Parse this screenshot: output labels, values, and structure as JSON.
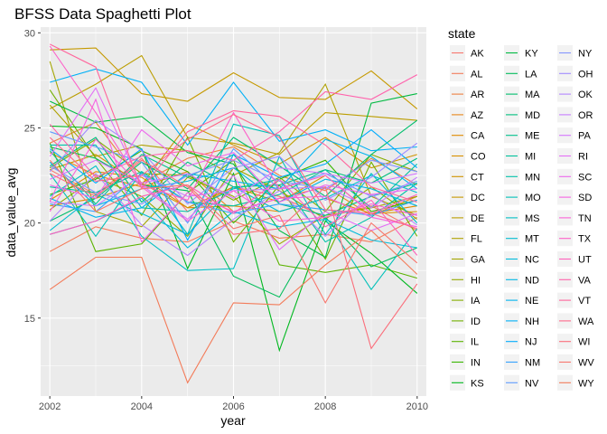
{
  "chart_data": {
    "type": "line",
    "title": "BFSS Data Spaghetti Plot",
    "xlabel": "year",
    "ylabel": "data_value_avg",
    "xlim": [
      2001.8,
      2010.2
    ],
    "ylim": [
      10.9,
      30.3
    ],
    "x_ticks": [
      "2002",
      "2004",
      "2006",
      "2008",
      "2010"
    ],
    "y_ticks": [
      "15",
      "20",
      "25",
      "30"
    ],
    "grid": true,
    "legend_title": "state",
    "legend_position": "right",
    "x": [
      2002,
      2003,
      2004,
      2005,
      2006,
      2007,
      2008,
      2009,
      2010
    ],
    "series": [
      {
        "name": "AK",
        "values": [
          22.8,
          21.5,
          23.4,
          20.6,
          21.9,
          21.4,
          20.3,
          20.9,
          19.6
        ]
      },
      {
        "name": "AL",
        "values": [
          18.5,
          19.8,
          19.2,
          19.0,
          20.1,
          19.2,
          19.4,
          19.0,
          20.3
        ]
      },
      {
        "name": "AR",
        "values": [
          24.2,
          25.3,
          22.1,
          23.4,
          24.0,
          22.5,
          21.7,
          23.4,
          22.0
        ]
      },
      {
        "name": "AZ",
        "values": [
          23.7,
          22.5,
          21.9,
          22.7,
          20.6,
          21.3,
          21.9,
          20.4,
          21.4
        ]
      },
      {
        "name": "CA",
        "values": [
          21.2,
          22.7,
          22.4,
          20.8,
          20.9,
          20.6,
          21.3,
          20.5,
          20.9
        ]
      },
      {
        "name": "CO",
        "values": [
          20.9,
          21.3,
          22.1,
          20.8,
          21.9,
          21.1,
          22.5,
          20.5,
          20.6
        ]
      },
      {
        "name": "CT",
        "values": [
          22.8,
          23.6,
          22.0,
          25.2,
          24.1,
          23.1,
          24.5,
          22.9,
          23.6
        ]
      },
      {
        "name": "DC",
        "values": [
          29.1,
          29.2,
          26.8,
          26.4,
          27.9,
          26.6,
          26.5,
          28.0,
          26.0
        ]
      },
      {
        "name": "DE",
        "values": [
          26.0,
          27.3,
          28.8,
          24.5,
          24.2,
          23.6,
          25.8,
          25.6,
          25.4
        ]
      },
      {
        "name": "FL",
        "values": [
          26.2,
          23.5,
          24.1,
          23.8,
          22.5,
          23.7,
          27.3,
          21.4,
          20.4
        ]
      },
      {
        "name": "GA",
        "values": [
          28.5,
          20.6,
          19.8,
          22.4,
          21.4,
          18.9,
          20.4,
          20.8,
          21.4
        ]
      },
      {
        "name": "HI",
        "values": [
          20.7,
          22.4,
          21.4,
          19.3,
          22.9,
          21.7,
          20.2,
          21.9,
          20.2
        ]
      },
      {
        "name": "IA",
        "values": [
          22.9,
          24.4,
          22.6,
          22.5,
          21.2,
          22.4,
          20.6,
          23.6,
          22.7
        ]
      },
      {
        "name": "ID",
        "values": [
          27.0,
          23.4,
          20.4,
          24.5,
          19.0,
          22.0,
          18.1,
          23.2,
          19.3
        ]
      },
      {
        "name": "IL",
        "values": [
          24.2,
          18.5,
          18.9,
          21.6,
          23.3,
          17.8,
          17.4,
          17.8,
          17.1
        ]
      },
      {
        "name": "IN",
        "values": [
          21.5,
          22.3,
          23.8,
          22.7,
          20.0,
          22.3,
          23.3,
          20.6,
          21.2
        ]
      },
      {
        "name": "KS",
        "values": [
          25.1,
          25.0,
          23.9,
          17.6,
          22.6,
          13.3,
          20.1,
          18.4,
          16.3
        ]
      },
      {
        "name": "KY",
        "values": [
          26.4,
          25.3,
          25.6,
          23.7,
          23.1,
          19.6,
          18.2,
          26.3,
          26.8
        ]
      },
      {
        "name": "LA",
        "values": [
          24.0,
          23.4,
          22.0,
          21.7,
          17.2,
          16.1,
          20.3,
          17.7,
          18.7
        ]
      },
      {
        "name": "MA",
        "values": [
          20.1,
          21.3,
          23.2,
          21.8,
          24.5,
          23.0,
          21.4,
          23.6,
          25.4
        ]
      },
      {
        "name": "MD",
        "values": [
          23.0,
          24.5,
          21.1,
          23.2,
          21.9,
          22.0,
          22.8,
          22.1,
          23.4
        ]
      },
      {
        "name": "ME",
        "values": [
          23.8,
          21.0,
          23.6,
          22.4,
          23.6,
          21.0,
          20.4,
          21.4,
          22.1
        ]
      },
      {
        "name": "MI",
        "values": [
          21.9,
          21.6,
          22.7,
          21.1,
          20.9,
          21.5,
          22.8,
          20.8,
          23.1
        ]
      },
      {
        "name": "MN",
        "values": [
          24.1,
          24.1,
          20.8,
          20.6,
          21.8,
          22.3,
          19.0,
          20.3,
          22.1
        ]
      },
      {
        "name": "MO",
        "values": [
          22.6,
          19.3,
          22.7,
          19.4,
          25.2,
          24.6,
          20.2,
          16.5,
          19.7
        ]
      },
      {
        "name": "MS",
        "values": [
          21.4,
          23.0,
          19.3,
          17.5,
          17.6,
          23.5,
          19.4,
          22.6,
          20.0
        ]
      },
      {
        "name": "MT",
        "values": [
          19.6,
          21.5,
          20.5,
          19.4,
          21.9,
          20.6,
          21.3,
          22.5,
          21.6
        ]
      },
      {
        "name": "NC",
        "values": [
          19.4,
          20.1,
          21.3,
          18.7,
          20.6,
          19.8,
          20.2,
          19.1,
          18.7
        ]
      },
      {
        "name": "ND",
        "values": [
          23.2,
          20.9,
          21.8,
          22.2,
          22.9,
          21.1,
          22.3,
          21.8,
          20.9
        ]
      },
      {
        "name": "NE",
        "values": [
          21.3,
          20.3,
          20.8,
          22.6,
          22.2,
          21.8,
          24.4,
          23.5,
          21.8
        ]
      },
      {
        "name": "NH",
        "values": [
          27.4,
          28.1,
          27.4,
          24.1,
          27.4,
          24.3,
          24.9,
          23.8,
          24.0
        ]
      },
      {
        "name": "NJ",
        "values": [
          23.9,
          22.1,
          23.9,
          19.1,
          23.6,
          22.4,
          23.1,
          24.9,
          22.9
        ]
      },
      {
        "name": "NM",
        "values": [
          21.0,
          20.6,
          22.6,
          21.1,
          20.5,
          21.0,
          20.7,
          20.4,
          21.2
        ]
      },
      {
        "name": "NV",
        "values": [
          24.8,
          24.0,
          23.2,
          20.0,
          23.9,
          21.8,
          22.6,
          21.4,
          22.2
        ]
      },
      {
        "name": "NY",
        "values": [
          23.0,
          21.6,
          21.0,
          22.5,
          23.3,
          22.2,
          21.8,
          23.3,
          22.7
        ]
      },
      {
        "name": "OH",
        "values": [
          22.7,
          25.4,
          23.8,
          21.0,
          22.9,
          23.5,
          21.2,
          22.4,
          24.2
        ]
      },
      {
        "name": "OK",
        "values": [
          20.1,
          22.6,
          19.9,
          18.3,
          20.2,
          21.7,
          19.3,
          21.5,
          19.9
        ]
      },
      {
        "name": "OR",
        "values": [
          21.1,
          20.9,
          22.5,
          21.4,
          21.7,
          21.8,
          21.9,
          20.8,
          22.4
        ]
      },
      {
        "name": "PA",
        "values": [
          22.3,
          23.3,
          22.1,
          22.6,
          21.3,
          22.9,
          22.6,
          22.1,
          22.6
        ]
      },
      {
        "name": "RI",
        "values": [
          23.5,
          27.1,
          22.0,
          20.2,
          22.5,
          18.6,
          20.6,
          19.6,
          20.5
        ]
      },
      {
        "name": "SC",
        "values": [
          22.0,
          21.3,
          24.9,
          23.0,
          23.7,
          21.1,
          22.0,
          21.5,
          21.8
        ]
      },
      {
        "name": "SD",
        "values": [
          21.1,
          26.5,
          19.0,
          21.6,
          20.6,
          21.3,
          21.4,
          20.3,
          19.8
        ]
      },
      {
        "name": "TN",
        "values": [
          20.6,
          24.4,
          21.9,
          20.1,
          21.7,
          20.1,
          20.3,
          21.0,
          20.4
        ]
      },
      {
        "name": "TX",
        "values": [
          29.3,
          25.8,
          22.0,
          21.2,
          25.8,
          21.8,
          22.5,
          20.5,
          21.5
        ]
      },
      {
        "name": "UT",
        "values": [
          19.4,
          20.1,
          21.4,
          22.0,
          20.5,
          22.3,
          19.8,
          21.2,
          18.3
        ]
      },
      {
        "name": "VA",
        "values": [
          25.2,
          22.4,
          23.5,
          23.8,
          23.3,
          24.8,
          26.9,
          26.5,
          27.8
        ]
      },
      {
        "name": "VT",
        "values": [
          29.4,
          28.2,
          21.8,
          24.8,
          25.9,
          25.6,
          24.1,
          21.9,
          21.1
        ]
      },
      {
        "name": "WA",
        "values": [
          24.5,
          22.2,
          22.5,
          24.4,
          25.7,
          24.5,
          20.7,
          20.5,
          19.7
        ]
      },
      {
        "name": "WI",
        "values": [
          22.6,
          21.4,
          23.3,
          21.9,
          19.4,
          19.7,
          21.9,
          13.4,
          16.8
        ]
      },
      {
        "name": "WV",
        "values": [
          23.3,
          20.6,
          21.8,
          22.0,
          19.7,
          20.4,
          15.8,
          20.0,
          17.9
        ]
      },
      {
        "name": "WY",
        "values": [
          16.5,
          18.2,
          18.2,
          11.6,
          15.8,
          15.7,
          17.8,
          19.6,
          17.3
        ]
      }
    ],
    "colors": [
      "#F8766D",
      "#F37B59",
      "#ED8141",
      "#E7861B",
      "#E08B00",
      "#D89000",
      "#CF9400",
      "#C59900",
      "#BB9D00",
      "#AFA100",
      "#A3A500",
      "#95A900",
      "#85AD00",
      "#72B000",
      "#5BB300",
      "#39B600",
      "#00B81F",
      "#00BA42",
      "#00BC59",
      "#00BE6C",
      "#00BF7D",
      "#00C08D",
      "#00C19C",
      "#00C1AA",
      "#00C0B8",
      "#00BFC4",
      "#00BDD0",
      "#00BBDB",
      "#00B8E5",
      "#00B4EF",
      "#00B0F6",
      "#00ABFD",
      "#35A2FF",
      "#619CFF",
      "#8494FF",
      "#9F8CFF",
      "#B385FF",
      "#C77CFF",
      "#D575FE",
      "#E36EF6",
      "#ED68ED",
      "#F564E3",
      "#FA62D7",
      "#FD61C9",
      "#FF61BB",
      "#FF62AC",
      "#FF659C",
      "#FD698B",
      "#FB6D7A",
      "#F8766D",
      "#F37B59"
    ]
  }
}
